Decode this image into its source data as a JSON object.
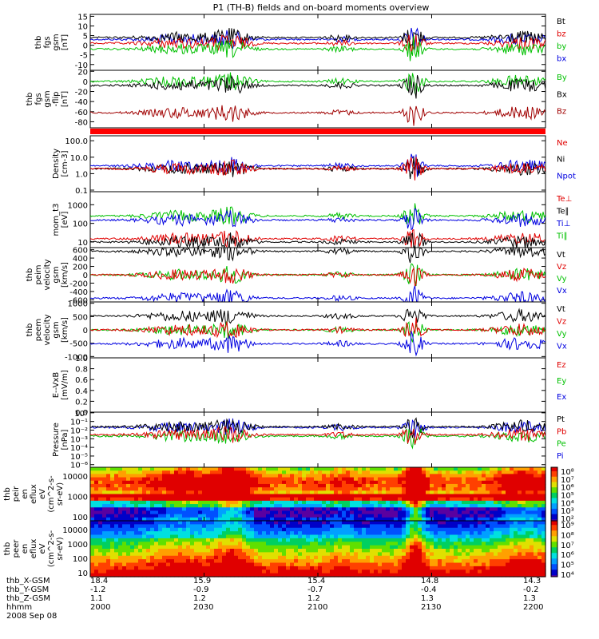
{
  "chart_data": {
    "type": "line",
    "title": "P1 (TH-B) fields and on-board moments overview",
    "x_ticks": [
      "2000",
      "2030",
      "2100",
      "2130",
      "2200"
    ],
    "panels": [
      {
        "ylabel": [
          "thb",
          "fgs",
          "gsm",
          "[nT]"
        ],
        "ytick_labels": [
          "15",
          "10",
          "5",
          "0",
          "-5",
          "-10"
        ],
        "yticks": [
          15,
          10,
          5,
          0,
          -5,
          -10
        ],
        "ylim": [
          -13,
          16
        ],
        "legend": [
          {
            "name": "Bt",
            "color": "#000000"
          },
          {
            "name": "bz",
            "color": "#e00000"
          },
          {
            "name": "by",
            "color": "#00c000"
          },
          {
            "name": "bx",
            "color": "#0000e0"
          }
        ],
        "series": [
          {
            "name": "bx",
            "color": "#0000e0",
            "level": 3
          },
          {
            "name": "Bt",
            "color": "#000000",
            "level": 4
          },
          {
            "name": "bz",
            "color": "#e00000",
            "level": 1
          },
          {
            "name": "by",
            "color": "#00c000",
            "level": -2
          }
        ]
      },
      {
        "ylabel": [
          "thb",
          "fgs",
          "gsm",
          "-flip",
          "[nT]"
        ],
        "ytick_labels": [
          "20",
          "0",
          "-20",
          "-40",
          "-60",
          "-80"
        ],
        "yticks": [
          20,
          0,
          -20,
          -40,
          -60,
          -80
        ],
        "ylim": [
          -92,
          22
        ],
        "legend": [
          {
            "name": "By",
            "color": "#00c000"
          },
          {
            "name": "Bx",
            "color": "#000000"
          },
          {
            "name": "Bz",
            "color": "#a00000"
          }
        ],
        "series": [
          {
            "name": "By",
            "color": "#00c000",
            "level": 0
          },
          {
            "name": "Bx",
            "color": "#000000",
            "level": -8
          },
          {
            "name": "Bz",
            "color": "#a00000",
            "level": -62
          }
        ]
      },
      {
        "ylabel": [
          "Density",
          "[cm-3]"
        ],
        "ytick_labels": [
          "100.0",
          "10.0",
          "1.0",
          "0.1"
        ],
        "yticks": [
          100,
          10,
          1,
          0.1
        ],
        "ylim": [
          0.08,
          200
        ],
        "log": true,
        "legend": [
          {
            "name": "Ne",
            "color": "#e00000"
          },
          {
            "name": "Ni",
            "color": "#000000"
          },
          {
            "name": "Npot",
            "color": "#0000e0"
          }
        ],
        "series": [
          {
            "name": "Npot",
            "color": "#0000e0",
            "level": 3
          },
          {
            "name": "Ni",
            "color": "#000000",
            "level": 2
          },
          {
            "name": "Ne",
            "color": "#e00000",
            "level": 2
          }
        ]
      },
      {
        "ylabel": [
          "mom_t3",
          "[eV]"
        ],
        "ytick_labels": [
          "1000",
          "100",
          "10"
        ],
        "yticks": [
          1000,
          100,
          10
        ],
        "ylim": [
          5,
          5000
        ],
        "log": true,
        "legend": [
          {
            "name": "Te⊥",
            "color": "#e00000"
          },
          {
            "name": "Te∥",
            "color": "#000000"
          },
          {
            "name": "Ti⊥",
            "color": "#0000e0"
          },
          {
            "name": "Ti∥",
            "color": "#00c000"
          }
        ],
        "series": [
          {
            "name": "Ti∥",
            "color": "#00c000",
            "level": 250
          },
          {
            "name": "Ti⊥",
            "color": "#0000e0",
            "level": 150
          },
          {
            "name": "Te⊥",
            "color": "#e00000",
            "level": 15
          },
          {
            "name": "Te∥",
            "color": "#000000",
            "level": 10
          }
        ]
      },
      {
        "ylabel": [
          "thb",
          "peim",
          "velocity",
          "gsm",
          "[km/s]"
        ],
        "ytick_labels": [
          "600",
          "400",
          "200",
          "0",
          "-200",
          "-400",
          "-600"
        ],
        "yticks": [
          600,
          400,
          200,
          0,
          -200,
          -400,
          -600
        ],
        "ylim": [
          -650,
          650
        ],
        "legend": [
          {
            "name": "Vt",
            "color": "#000000"
          },
          {
            "name": "Vz",
            "color": "#e00000"
          },
          {
            "name": "Vy",
            "color": "#00c000"
          },
          {
            "name": "Vx",
            "color": "#0000e0"
          }
        ],
        "series": [
          {
            "name": "Vt",
            "color": "#000000",
            "level": 560
          },
          {
            "name": "Vy",
            "color": "#00c000",
            "level": 0
          },
          {
            "name": "Vz",
            "color": "#e00000",
            "level": 0
          },
          {
            "name": "Vx",
            "color": "#0000e0",
            "level": -560
          }
        ]
      },
      {
        "ylabel": [
          "thb",
          "peem",
          "velocity",
          "gsm",
          "[km/s]"
        ],
        "ytick_labels": [
          "1000",
          "500",
          "0",
          "-500",
          "-1000"
        ],
        "yticks": [
          1000,
          500,
          0,
          -500,
          -1000
        ],
        "ylim": [
          -1050,
          1050
        ],
        "legend": [
          {
            "name": "Vt",
            "color": "#000000"
          },
          {
            "name": "Vz",
            "color": "#e00000"
          },
          {
            "name": "Vy",
            "color": "#00c000"
          },
          {
            "name": "Vx",
            "color": "#0000e0"
          }
        ],
        "series": [
          {
            "name": "Vt",
            "color": "#000000",
            "level": 520
          },
          {
            "name": "Vy",
            "color": "#00c000",
            "level": 0
          },
          {
            "name": "Vz",
            "color": "#e00000",
            "level": 0
          },
          {
            "name": "Vx",
            "color": "#0000e0",
            "level": -520
          }
        ]
      },
      {
        "ylabel": [
          "E--VxB",
          "[mV/m]"
        ],
        "ytick_labels": [
          "1.0",
          "0.8",
          "0.6",
          "0.4",
          "0.2",
          "0.0"
        ],
        "yticks": [
          1,
          0.8,
          0.6,
          0.4,
          0.2,
          0
        ],
        "ylim": [
          0,
          1
        ],
        "legend": [
          {
            "name": "Ez",
            "color": "#e00000"
          },
          {
            "name": "Ey",
            "color": "#00c000"
          },
          {
            "name": "Ex",
            "color": "#0000e0"
          }
        ],
        "series": []
      },
      {
        "ylabel": [
          "Pressure",
          "[nPa]"
        ],
        "ytick_labels": [
          "10⁰",
          "10⁻¹",
          "10⁻²",
          "10⁻³",
          "10⁻⁴",
          "10⁻⁵",
          "10⁻⁶"
        ],
        "yticks": [
          1,
          0.1,
          0.01,
          0.001,
          0.0001,
          1e-05,
          1e-06
        ],
        "ylim": [
          5e-07,
          1.2
        ],
        "log": true,
        "legend": [
          {
            "name": "Pt",
            "color": "#000000"
          },
          {
            "name": "Pb",
            "color": "#e00000"
          },
          {
            "name": "Pe",
            "color": "#00c000"
          },
          {
            "name": "Pi",
            "color": "#0000e0"
          }
        ],
        "series": [
          {
            "name": "Pi",
            "color": "#0000e0",
            "level": 0.02
          },
          {
            "name": "Pt",
            "color": "#000000",
            "level": 0.025
          },
          {
            "name": "Pe",
            "color": "#00c000",
            "level": 0.002
          },
          {
            "name": "Pb",
            "color": "#e00000",
            "level": 0.003
          }
        ]
      }
    ],
    "spectrograms": [
      {
        "ylabel": [
          "thb",
          "peir",
          "en",
          "eflux",
          "eV",
          "(cm^2-s-",
          "sr-eV)"
        ],
        "ytick_labels": [
          "10000",
          "1000",
          "100"
        ],
        "colorbar_labels": [
          "10⁸",
          "10⁷",
          "10⁶",
          "10⁵",
          "10⁴",
          "10³",
          "10²"
        ]
      },
      {
        "ylabel": [
          "thb",
          "peer",
          "en",
          "eflux",
          "eV",
          "(cm^2-s-",
          "sr-eV)"
        ],
        "ytick_labels": [
          "10000",
          "1000",
          "100",
          "10"
        ],
        "colorbar_labels": [
          "10⁹",
          "10⁸",
          "10⁷",
          "10⁶",
          "10⁵",
          "10⁴"
        ]
      }
    ]
  },
  "orbit": {
    "rows": [
      {
        "label": "thb_X-GSM",
        "values": [
          "18.4",
          "15.9",
          "15.4",
          "14.8",
          "14.3"
        ]
      },
      {
        "label": "thb_Y-GSM",
        "values": [
          "-1.2",
          "-0.9",
          "-0.7",
          "-0.4",
          "-0.2"
        ]
      },
      {
        "label": "thb_Z-GSM",
        "values": [
          "1.1",
          "1.2",
          "1.2",
          "1.3",
          "1.3"
        ]
      },
      {
        "label": "hhmm",
        "values": [
          "2000",
          "2030",
          "2100",
          "2130",
          "2200"
        ]
      }
    ],
    "date": "2008 Sep 08"
  }
}
